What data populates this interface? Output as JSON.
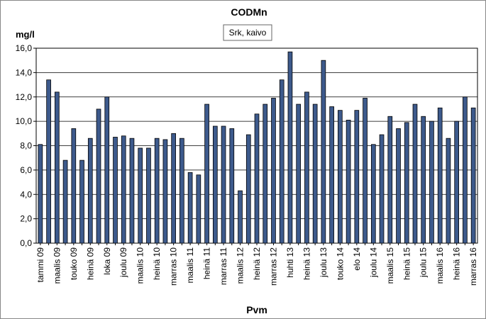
{
  "chart_data": {
    "type": "bar",
    "title": "CODMn",
    "ylabel": "mg/l",
    "xlabel": "Pvm",
    "legend": {
      "entries": [
        "Srk, kaivo"
      ],
      "placement": "top-center"
    },
    "ylim": [
      0,
      16
    ],
    "ytick_step": 2,
    "ytick_labels": [
      "0,0",
      "2,0",
      "4,0",
      "6,0",
      "8,0",
      "10,0",
      "12,0",
      "14,0",
      "16,0"
    ],
    "grid": true,
    "bar_color": "#3d5a8c",
    "categories": [
      "tammi 09",
      "",
      "maalis 09",
      "",
      "touko 09",
      "",
      "heinä 09",
      "",
      "loka 09",
      "",
      "joulu 09",
      "",
      "maalis 10",
      "",
      "heinä 10",
      "",
      "marras 10",
      "",
      "maalis 11",
      "",
      "heinä 11",
      "",
      "marras 11",
      "",
      "maalis 12",
      "",
      "heinä 12",
      "",
      "marras 12",
      "",
      "huhti 13",
      "",
      "heinä 13",
      "",
      "joulu 13",
      "",
      "touko 14",
      "",
      "elo 14",
      "",
      "joulu 14",
      "",
      "maalis 15",
      "",
      "heinä 15",
      "",
      "joulu 15",
      "",
      "maalis 16",
      "",
      "heinä 16",
      "",
      "marras 16"
    ],
    "series": [
      {
        "values": [
          8.1,
          13.4,
          12.4,
          6.8,
          9.4,
          6.8,
          8.6,
          11.0,
          12.0,
          8.7,
          8.8,
          8.6,
          7.8,
          7.8,
          8.6,
          8.5,
          9.0,
          8.6,
          5.8,
          5.6,
          11.4,
          9.6,
          9.6,
          9.4,
          4.3,
          8.9,
          10.6,
          11.4,
          11.9,
          13.4,
          15.7,
          11.4,
          12.4,
          11.4,
          15.0,
          11.2,
          10.9,
          10.1,
          10.9,
          11.9,
          8.1,
          8.9,
          10.4,
          9.4,
          9.9,
          11.4,
          10.4,
          10.0,
          11.1,
          8.6,
          10.0,
          12.0,
          11.1
        ]
      }
    ]
  }
}
